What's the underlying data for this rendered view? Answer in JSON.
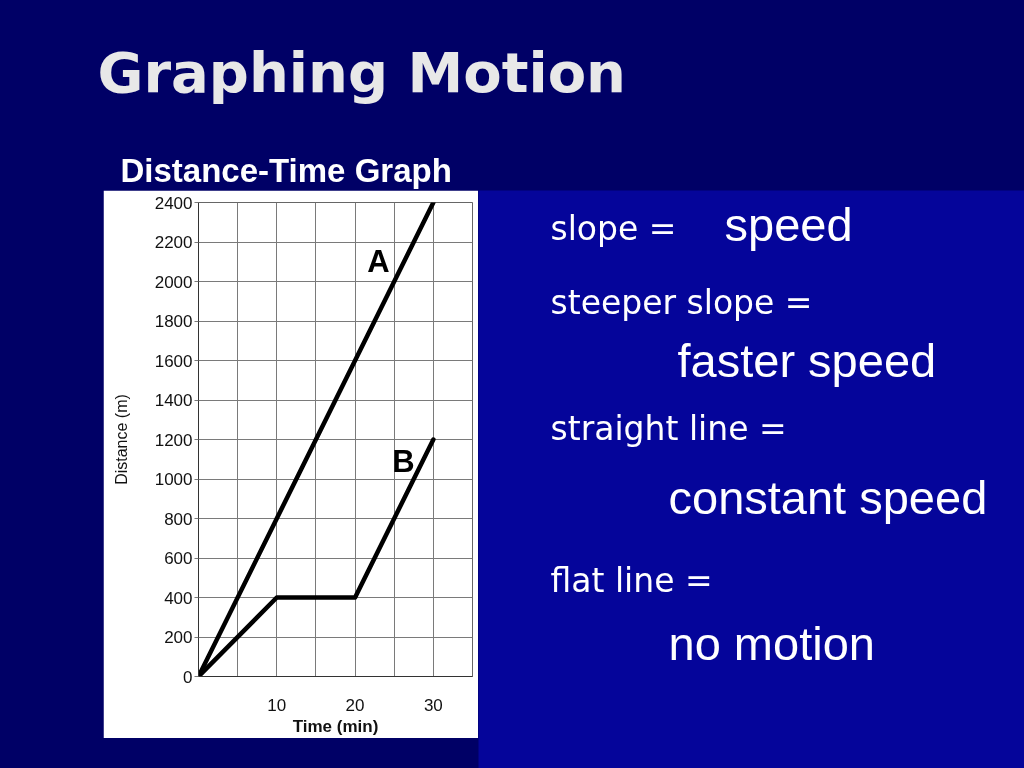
{
  "chart_data": {
    "type": "line",
    "title": "Graphing Motion",
    "subtitle": "Distance-Time Graph",
    "xlabel": "Time (min)",
    "ylabel": "Distance (m)",
    "x": [
      0,
      10,
      20,
      30
    ],
    "series": [
      {
        "name": "A",
        "color": "#000000",
        "values": [
          0,
          800,
          1600,
          2400
        ]
      },
      {
        "name": "B",
        "color": "#000000",
        "values": [
          0,
          400,
          400,
          1200
        ]
      }
    ],
    "xlim": [
      0,
      35
    ],
    "xticks": [
      {
        "value": 5,
        "label": null
      },
      10,
      {
        "value": 15,
        "label": null
      },
      20,
      {
        "value": 25,
        "label": null
      },
      30,
      {
        "value": 35,
        "label": null
      }
    ],
    "ylim": [
      0,
      2400
    ],
    "yticks": [
      0,
      200,
      400,
      600,
      800,
      1000,
      1200,
      1400,
      1600,
      1800,
      2000,
      2200,
      2400
    ],
    "grid": true,
    "line_style": "solid",
    "annotations": [
      "slope =",
      "speed",
      "steeper slope =",
      "faster speed",
      "straight line =",
      "constant speed",
      "flat line =",
      "no motion"
    ]
  }
}
